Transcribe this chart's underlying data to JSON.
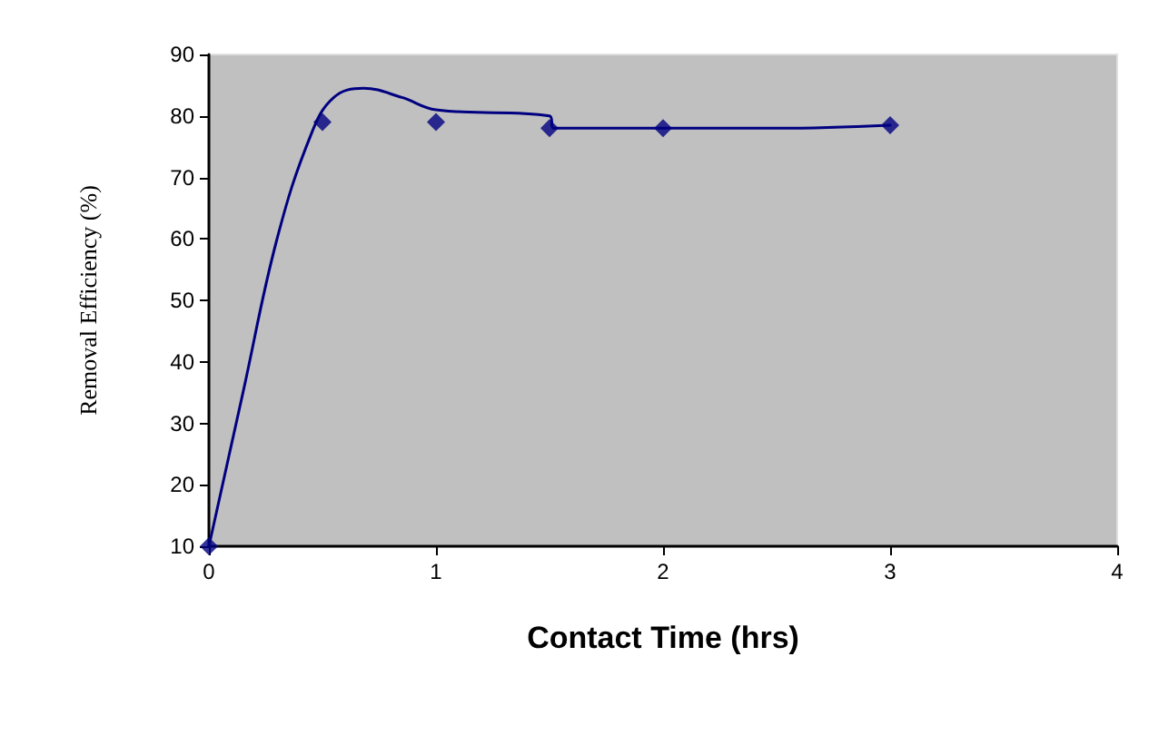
{
  "chart_data": {
    "type": "scatter",
    "xlabel": "Contact Time (hrs)",
    "ylabel": "Removal Efficiency (%)",
    "xlim": [
      0,
      4
    ],
    "xticks": [
      0,
      1,
      2,
      3,
      4
    ],
    "ylim": [
      10,
      90
    ],
    "yticks": [
      10,
      20,
      30,
      40,
      50,
      60,
      70,
      80,
      90
    ],
    "grid": false,
    "marker": "diamond",
    "series": [
      {
        "color": "#000080",
        "x": [
          0,
          0.5,
          1,
          1.5,
          2,
          3
        ],
        "values": [
          10,
          79,
          79,
          78,
          78,
          78.5
        ]
      },
      {
        "type": "line",
        "color": "#000080",
        "marker": "none",
        "line_style": "solid",
        "x": [
          0,
          0.15,
          0.3,
          0.45,
          0.55,
          0.68,
          0.85,
          1,
          1.5,
          1.52,
          2,
          2.5,
          3
        ],
        "values": [
          10,
          35,
          60,
          77,
          83,
          84.5,
          83,
          81,
          80,
          78,
          78,
          78,
          78.5
        ]
      }
    ]
  }
}
